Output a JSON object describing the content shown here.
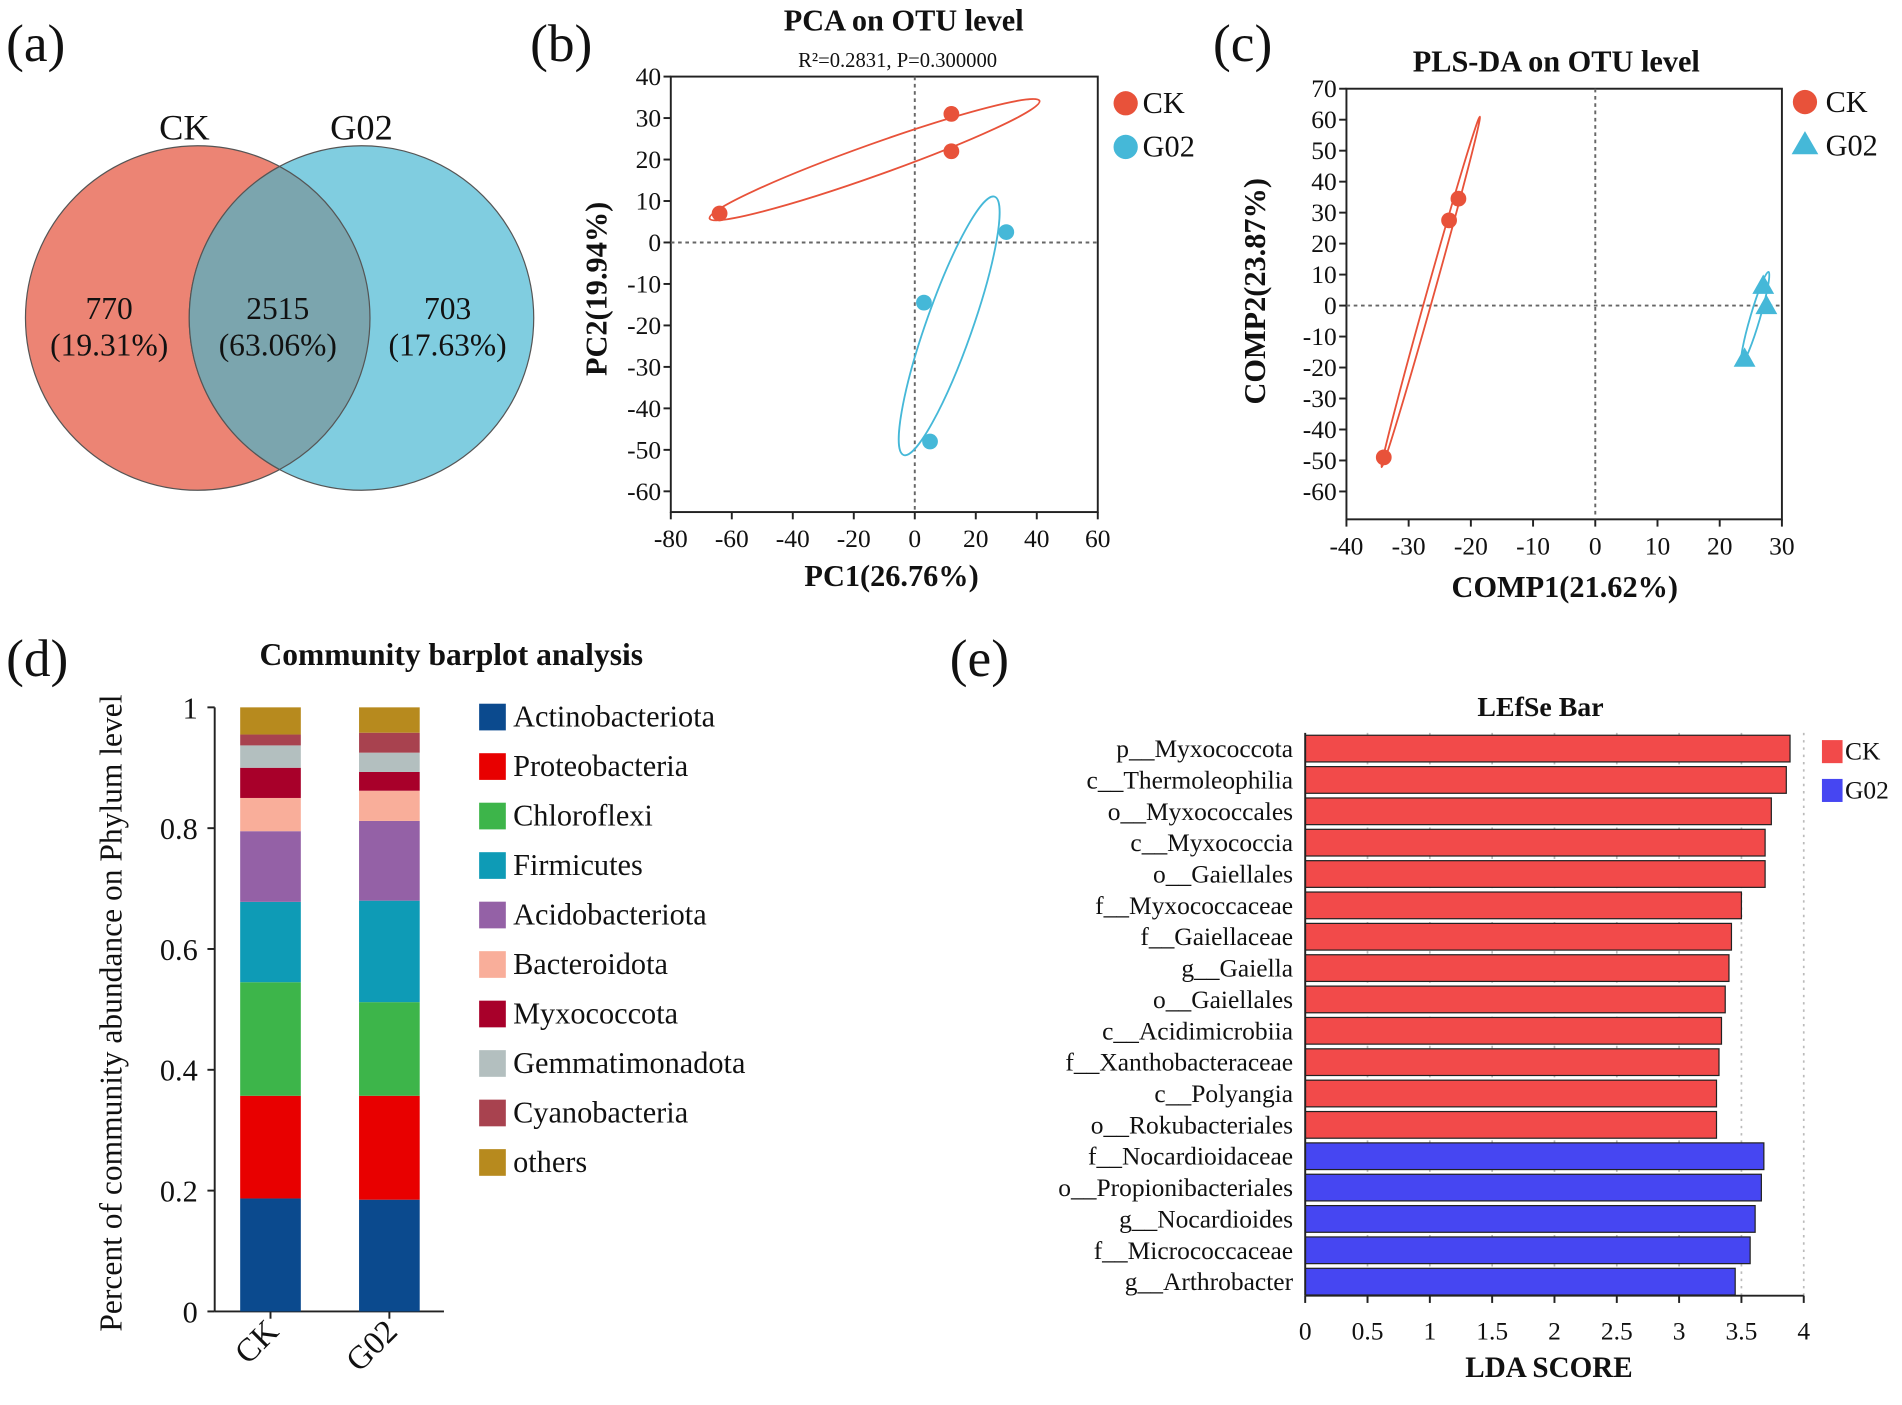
{
  "panel_labels": {
    "a": "(a)",
    "b": "(b)",
    "c": "(c)",
    "d": "(d)",
    "e": "(e)"
  },
  "colors": {
    "ck": "#E8523A",
    "g02": "#45B8D8",
    "venn_ck": "#EC8474",
    "venn_g02": "#80CDE0",
    "venn_overlap": "#7BA5AE",
    "lefse_ck": "#F24A4A",
    "lefse_g02": "#4646F2"
  },
  "chart_data": [
    {
      "type": "venn",
      "sets": [
        "CK",
        "G02"
      ],
      "regions": [
        {
          "name": "CK only",
          "count": "770",
          "percent": "(19.31%)"
        },
        {
          "name": "shared",
          "count": "2515",
          "percent": "(63.06%)"
        },
        {
          "name": "G02 only",
          "count": "703",
          "percent": "(17.63%)"
        }
      ]
    },
    {
      "type": "scatter",
      "title": "PCA on OTU level",
      "subtitle": "R²=0.2831, P=0.300000",
      "xlabel": "PC1(26.76%)",
      "ylabel": "PC2(19.94%)",
      "xlim": [
        -80,
        60
      ],
      "ylim": [
        -65,
        40
      ],
      "xticks": [
        -80,
        -60,
        -40,
        -20,
        0,
        20,
        40,
        60
      ],
      "yticks": [
        -60,
        -50,
        -40,
        -30,
        -20,
        -10,
        0,
        10,
        20,
        30,
        40
      ],
      "legend": "right",
      "series": [
        {
          "name": "CK",
          "marker": "circle",
          "points": [
            [
              12,
              31
            ],
            [
              12,
              22
            ],
            [
              -64,
              7
            ]
          ]
        },
        {
          "name": "G02",
          "marker": "circle",
          "points": [
            [
              30,
              2.5
            ],
            [
              3,
              -14.5
            ],
            [
              5,
              -48
            ]
          ]
        }
      ]
    },
    {
      "type": "scatter",
      "title": "PLS-DA on OTU level",
      "xlabel": "COMP1(21.62%)",
      "ylabel": "COMP2(23.87%)",
      "xlim": [
        -40,
        30
      ],
      "ylim": [
        -69,
        70
      ],
      "xticks": [
        -40,
        -30,
        -20,
        -10,
        0,
        10,
        20,
        30
      ],
      "yticks": [
        -60,
        -50,
        -40,
        -30,
        -20,
        -10,
        0,
        10,
        20,
        30,
        40,
        50,
        60,
        70
      ],
      "legend": "right",
      "series": [
        {
          "name": "CK",
          "marker": "circle",
          "points": [
            [
              -23.5,
              27.5
            ],
            [
              -22,
              34.5
            ],
            [
              -34,
              -49
            ]
          ]
        },
        {
          "name": "G02",
          "marker": "triangle",
          "points": [
            [
              27,
              6.5
            ],
            [
              27.5,
              0
            ],
            [
              24,
              -17
            ]
          ]
        }
      ]
    },
    {
      "type": "bar",
      "stacked": true,
      "title": "Community barplot analysis",
      "ylabel": "Percent of community abundance on Phylum level",
      "categories": [
        "CK",
        "G02"
      ],
      "ylim": [
        0,
        1
      ],
      "yticks": [
        "0",
        "0.2",
        "0.4",
        "0.6",
        "0.8",
        "1"
      ],
      "legend": "right",
      "series": [
        {
          "name": "Actinobacteriota",
          "color": "#0B4A8E",
          "values": [
            0.187,
            0.185
          ]
        },
        {
          "name": "Proteobacteria",
          "color": "#E80000",
          "values": [
            0.17,
            0.172
          ]
        },
        {
          "name": "Chloroflexi",
          "color": "#3DB54A",
          "values": [
            0.188,
            0.155
          ]
        },
        {
          "name": "Firmicutes",
          "color": "#0E9BB6",
          "values": [
            0.133,
            0.168
          ]
        },
        {
          "name": "Acidobacteriota",
          "color": "#9461A6",
          "values": [
            0.117,
            0.132
          ]
        },
        {
          "name": "Bacteroidota",
          "color": "#F9AE9A",
          "values": [
            0.055,
            0.05
          ]
        },
        {
          "name": "Myxococcota",
          "color": "#A8002A",
          "values": [
            0.05,
            0.031
          ]
        },
        {
          "name": "Gemmatimonadota",
          "color": "#B3BFBF",
          "values": [
            0.037,
            0.032
          ]
        },
        {
          "name": "Cyanobacteria",
          "color": "#A8424F",
          "values": [
            0.018,
            0.033
          ]
        },
        {
          "name": "others",
          "color": "#B78A1E",
          "values": [
            0.045,
            0.042
          ]
        }
      ]
    },
    {
      "type": "bar",
      "orientation": "horizontal",
      "title": "LEfSe Bar",
      "xlabel": "LDA SCORE",
      "xlim": [
        0,
        4
      ],
      "xticks": [
        "0",
        "0.5",
        "1",
        "1.5",
        "2",
        "2.5",
        "3",
        "3.5",
        "4"
      ],
      "legend": "top-right",
      "groups": [
        "CK",
        "G02"
      ],
      "bars": [
        {
          "label": "p__Myxococcota",
          "group": "CK",
          "value": 3.89
        },
        {
          "label": "c__Thermoleophilia",
          "group": "CK",
          "value": 3.86
        },
        {
          "label": "o__Myxococcales",
          "group": "CK",
          "value": 3.74
        },
        {
          "label": "c__Myxococcia",
          "group": "CK",
          "value": 3.69
        },
        {
          "label": "o__Gaiellales",
          "group": "CK",
          "value": 3.69
        },
        {
          "label": "f__Myxococcaceae",
          "group": "CK",
          "value": 3.5
        },
        {
          "label": "f__Gaiellaceae",
          "group": "CK",
          "value": 3.42
        },
        {
          "label": "g__Gaiella",
          "group": "CK",
          "value": 3.4
        },
        {
          "label": "o__Gaiellales",
          "group": "CK",
          "value": 3.37
        },
        {
          "label": "c__Acidimicrobiia",
          "group": "CK",
          "value": 3.34
        },
        {
          "label": "f__Xanthobacteraceae",
          "group": "CK",
          "value": 3.32
        },
        {
          "label": "c__Polyangia",
          "group": "CK",
          "value": 3.3
        },
        {
          "label": "o__Rokubacteriales",
          "group": "CK",
          "value": 3.3
        },
        {
          "label": "f__Nocardioidaceae",
          "group": "G02",
          "value": 3.68
        },
        {
          "label": "o__Propionibacteriales",
          "group": "G02",
          "value": 3.66
        },
        {
          "label": "g__Nocardioides",
          "group": "G02",
          "value": 3.61
        },
        {
          "label": "f__Micrococcaceae",
          "group": "G02",
          "value": 3.57
        },
        {
          "label": "g__Arthrobacter",
          "group": "G02",
          "value": 3.45
        }
      ]
    }
  ]
}
